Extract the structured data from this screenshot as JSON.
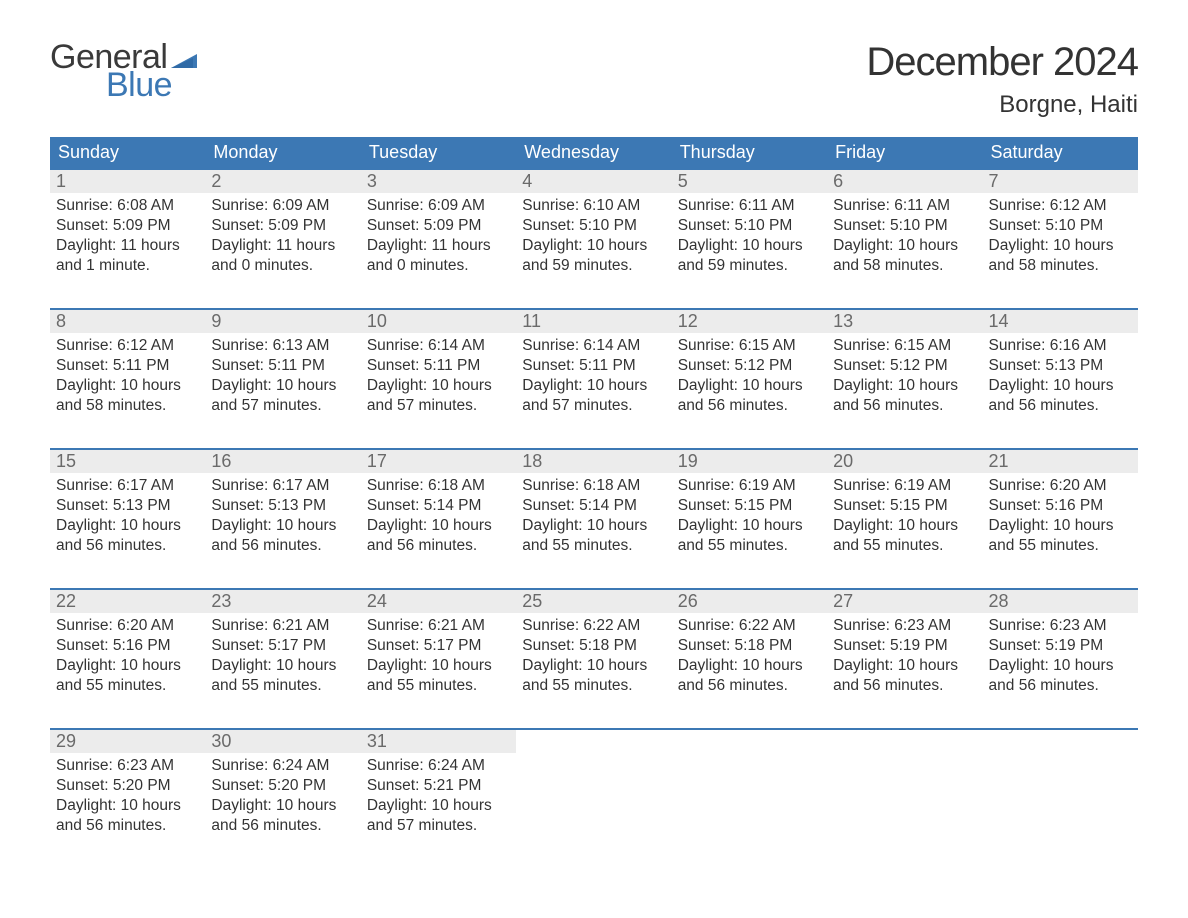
{
  "brand": {
    "word1": "General",
    "word2": "Blue",
    "word1_color": "#3a3a3a",
    "word2_color": "#3c78b4",
    "flag_color": "#3c78b4"
  },
  "title": "December 2024",
  "location": "Borgne, Haiti",
  "colors": {
    "header_bg": "#3c78b4",
    "header_text": "#ffffff",
    "week_border": "#3c78b4",
    "daynum_bg": "#ececec",
    "daynum_text": "#6a6a6a",
    "body_text": "#333333",
    "page_bg": "#ffffff"
  },
  "typography": {
    "title_fontsize": 40,
    "location_fontsize": 24,
    "dow_fontsize": 18,
    "daynum_fontsize": 18,
    "body_fontsize": 15.5,
    "logo_fontsize": 34
  },
  "layout": {
    "columns": 7,
    "rows": 5,
    "cell_min_height": 120,
    "week_gap": 18
  },
  "days_of_week": [
    "Sunday",
    "Monday",
    "Tuesday",
    "Wednesday",
    "Thursday",
    "Friday",
    "Saturday"
  ],
  "weeks": [
    [
      {
        "n": "1",
        "sunrise": "Sunrise: 6:08 AM",
        "sunset": "Sunset: 5:09 PM",
        "daylight": "Daylight: 11 hours and 1 minute."
      },
      {
        "n": "2",
        "sunrise": "Sunrise: 6:09 AM",
        "sunset": "Sunset: 5:09 PM",
        "daylight": "Daylight: 11 hours and 0 minutes."
      },
      {
        "n": "3",
        "sunrise": "Sunrise: 6:09 AM",
        "sunset": "Sunset: 5:09 PM",
        "daylight": "Daylight: 11 hours and 0 minutes."
      },
      {
        "n": "4",
        "sunrise": "Sunrise: 6:10 AM",
        "sunset": "Sunset: 5:10 PM",
        "daylight": "Daylight: 10 hours and 59 minutes."
      },
      {
        "n": "5",
        "sunrise": "Sunrise: 6:11 AM",
        "sunset": "Sunset: 5:10 PM",
        "daylight": "Daylight: 10 hours and 59 minutes."
      },
      {
        "n": "6",
        "sunrise": "Sunrise: 6:11 AM",
        "sunset": "Sunset: 5:10 PM",
        "daylight": "Daylight: 10 hours and 58 minutes."
      },
      {
        "n": "7",
        "sunrise": "Sunrise: 6:12 AM",
        "sunset": "Sunset: 5:10 PM",
        "daylight": "Daylight: 10 hours and 58 minutes."
      }
    ],
    [
      {
        "n": "8",
        "sunrise": "Sunrise: 6:12 AM",
        "sunset": "Sunset: 5:11 PM",
        "daylight": "Daylight: 10 hours and 58 minutes."
      },
      {
        "n": "9",
        "sunrise": "Sunrise: 6:13 AM",
        "sunset": "Sunset: 5:11 PM",
        "daylight": "Daylight: 10 hours and 57 minutes."
      },
      {
        "n": "10",
        "sunrise": "Sunrise: 6:14 AM",
        "sunset": "Sunset: 5:11 PM",
        "daylight": "Daylight: 10 hours and 57 minutes."
      },
      {
        "n": "11",
        "sunrise": "Sunrise: 6:14 AM",
        "sunset": "Sunset: 5:11 PM",
        "daylight": "Daylight: 10 hours and 57 minutes."
      },
      {
        "n": "12",
        "sunrise": "Sunrise: 6:15 AM",
        "sunset": "Sunset: 5:12 PM",
        "daylight": "Daylight: 10 hours and 56 minutes."
      },
      {
        "n": "13",
        "sunrise": "Sunrise: 6:15 AM",
        "sunset": "Sunset: 5:12 PM",
        "daylight": "Daylight: 10 hours and 56 minutes."
      },
      {
        "n": "14",
        "sunrise": "Sunrise: 6:16 AM",
        "sunset": "Sunset: 5:13 PM",
        "daylight": "Daylight: 10 hours and 56 minutes."
      }
    ],
    [
      {
        "n": "15",
        "sunrise": "Sunrise: 6:17 AM",
        "sunset": "Sunset: 5:13 PM",
        "daylight": "Daylight: 10 hours and 56 minutes."
      },
      {
        "n": "16",
        "sunrise": "Sunrise: 6:17 AM",
        "sunset": "Sunset: 5:13 PM",
        "daylight": "Daylight: 10 hours and 56 minutes."
      },
      {
        "n": "17",
        "sunrise": "Sunrise: 6:18 AM",
        "sunset": "Sunset: 5:14 PM",
        "daylight": "Daylight: 10 hours and 56 minutes."
      },
      {
        "n": "18",
        "sunrise": "Sunrise: 6:18 AM",
        "sunset": "Sunset: 5:14 PM",
        "daylight": "Daylight: 10 hours and 55 minutes."
      },
      {
        "n": "19",
        "sunrise": "Sunrise: 6:19 AM",
        "sunset": "Sunset: 5:15 PM",
        "daylight": "Daylight: 10 hours and 55 minutes."
      },
      {
        "n": "20",
        "sunrise": "Sunrise: 6:19 AM",
        "sunset": "Sunset: 5:15 PM",
        "daylight": "Daylight: 10 hours and 55 minutes."
      },
      {
        "n": "21",
        "sunrise": "Sunrise: 6:20 AM",
        "sunset": "Sunset: 5:16 PM",
        "daylight": "Daylight: 10 hours and 55 minutes."
      }
    ],
    [
      {
        "n": "22",
        "sunrise": "Sunrise: 6:20 AM",
        "sunset": "Sunset: 5:16 PM",
        "daylight": "Daylight: 10 hours and 55 minutes."
      },
      {
        "n": "23",
        "sunrise": "Sunrise: 6:21 AM",
        "sunset": "Sunset: 5:17 PM",
        "daylight": "Daylight: 10 hours and 55 minutes."
      },
      {
        "n": "24",
        "sunrise": "Sunrise: 6:21 AM",
        "sunset": "Sunset: 5:17 PM",
        "daylight": "Daylight: 10 hours and 55 minutes."
      },
      {
        "n": "25",
        "sunrise": "Sunrise: 6:22 AM",
        "sunset": "Sunset: 5:18 PM",
        "daylight": "Daylight: 10 hours and 55 minutes."
      },
      {
        "n": "26",
        "sunrise": "Sunrise: 6:22 AM",
        "sunset": "Sunset: 5:18 PM",
        "daylight": "Daylight: 10 hours and 56 minutes."
      },
      {
        "n": "27",
        "sunrise": "Sunrise: 6:23 AM",
        "sunset": "Sunset: 5:19 PM",
        "daylight": "Daylight: 10 hours and 56 minutes."
      },
      {
        "n": "28",
        "sunrise": "Sunrise: 6:23 AM",
        "sunset": "Sunset: 5:19 PM",
        "daylight": "Daylight: 10 hours and 56 minutes."
      }
    ],
    [
      {
        "n": "29",
        "sunrise": "Sunrise: 6:23 AM",
        "sunset": "Sunset: 5:20 PM",
        "daylight": "Daylight: 10 hours and 56 minutes."
      },
      {
        "n": "30",
        "sunrise": "Sunrise: 6:24 AM",
        "sunset": "Sunset: 5:20 PM",
        "daylight": "Daylight: 10 hours and 56 minutes."
      },
      {
        "n": "31",
        "sunrise": "Sunrise: 6:24 AM",
        "sunset": "Sunset: 5:21 PM",
        "daylight": "Daylight: 10 hours and 57 minutes."
      },
      {
        "empty": true
      },
      {
        "empty": true
      },
      {
        "empty": true
      },
      {
        "empty": true
      }
    ]
  ]
}
